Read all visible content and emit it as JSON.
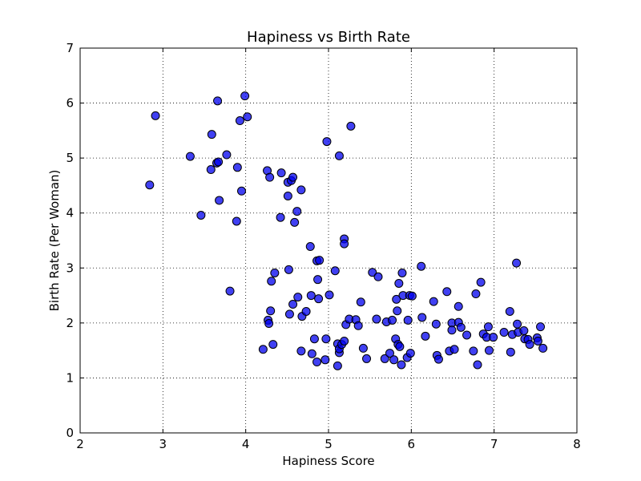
{
  "chart_data": {
    "type": "scatter",
    "title": "Hapiness vs Birth Rate",
    "xlabel": "Hapiness Score",
    "ylabel": "Birth Rate (Per Woman)",
    "xlim": [
      2,
      8
    ],
    "ylim": [
      0,
      7
    ],
    "xticks": [
      2,
      3,
      4,
      5,
      6,
      7,
      8
    ],
    "yticks": [
      0,
      1,
      2,
      3,
      4,
      5,
      6,
      7
    ],
    "grid": true,
    "marker_color": "#0000ee",
    "series": [
      {
        "points": [
          [
            2.84,
            4.51
          ],
          [
            2.91,
            5.77
          ],
          [
            3.33,
            5.03
          ],
          [
            3.46,
            3.96
          ],
          [
            3.58,
            4.79
          ],
          [
            3.59,
            5.43
          ],
          [
            3.65,
            4.91
          ],
          [
            3.66,
            6.04
          ],
          [
            3.68,
            4.23
          ],
          [
            3.67,
            4.93
          ],
          [
            3.77,
            5.06
          ],
          [
            3.81,
            2.58
          ],
          [
            3.89,
            3.85
          ],
          [
            3.9,
            4.83
          ],
          [
            3.93,
            5.68
          ],
          [
            3.95,
            4.4
          ],
          [
            3.99,
            6.13
          ],
          [
            4.02,
            5.75
          ],
          [
            4.21,
            1.52
          ],
          [
            4.26,
            4.77
          ],
          [
            4.27,
            2.05
          ],
          [
            4.28,
            1.99
          ],
          [
            4.29,
            4.65
          ],
          [
            4.3,
            2.22
          ],
          [
            4.31,
            2.76
          ],
          [
            4.33,
            1.61
          ],
          [
            4.35,
            2.91
          ],
          [
            4.42,
            3.92
          ],
          [
            4.43,
            4.73
          ],
          [
            4.51,
            4.31
          ],
          [
            4.51,
            4.56
          ],
          [
            4.52,
            2.97
          ],
          [
            4.53,
            2.16
          ],
          [
            4.55,
            4.59
          ],
          [
            4.57,
            2.34
          ],
          [
            4.57,
            4.65
          ],
          [
            4.59,
            3.83
          ],
          [
            4.62,
            4.03
          ],
          [
            4.63,
            2.47
          ],
          [
            4.67,
            4.42
          ],
          [
            4.67,
            1.49
          ],
          [
            4.68,
            2.12
          ],
          [
            4.73,
            2.21
          ],
          [
            4.78,
            3.39
          ],
          [
            4.79,
            2.5
          ],
          [
            4.8,
            1.44
          ],
          [
            4.83,
            1.71
          ],
          [
            4.86,
            3.13
          ],
          [
            4.86,
            1.29
          ],
          [
            4.87,
            2.79
          ],
          [
            4.88,
            2.44
          ],
          [
            4.89,
            3.14
          ],
          [
            4.96,
            1.33
          ],
          [
            4.97,
            1.71
          ],
          [
            4.98,
            5.3
          ],
          [
            5.01,
            2.51
          ],
          [
            5.08,
            2.95
          ],
          [
            5.11,
            1.22
          ],
          [
            5.11,
            1.62
          ],
          [
            5.13,
            1.46
          ],
          [
            5.13,
            1.53
          ],
          [
            5.13,
            5.04
          ],
          [
            5.16,
            1.61
          ],
          [
            5.19,
            3.53
          ],
          [
            5.19,
            3.44
          ],
          [
            5.19,
            1.67
          ],
          [
            5.21,
            1.97
          ],
          [
            5.25,
            2.07
          ],
          [
            5.27,
            5.58
          ],
          [
            5.33,
            2.06
          ],
          [
            5.36,
            1.95
          ],
          [
            5.39,
            2.38
          ],
          [
            5.42,
            1.54
          ],
          [
            5.46,
            1.35
          ],
          [
            5.53,
            2.92
          ],
          [
            5.58,
            2.07
          ],
          [
            5.6,
            2.84
          ],
          [
            5.68,
            1.35
          ],
          [
            5.7,
            2.02
          ],
          [
            5.74,
            1.45
          ],
          [
            5.77,
            2.05
          ],
          [
            5.79,
            1.33
          ],
          [
            5.81,
            1.71
          ],
          [
            5.82,
            2.43
          ],
          [
            5.83,
            2.22
          ],
          [
            5.84,
            1.61
          ],
          [
            5.85,
            2.72
          ],
          [
            5.86,
            1.57
          ],
          [
            5.88,
            1.24
          ],
          [
            5.89,
            2.91
          ],
          [
            5.9,
            2.5
          ],
          [
            5.95,
            1.37
          ],
          [
            5.96,
            2.05
          ],
          [
            5.98,
            2.5
          ],
          [
            5.99,
            1.45
          ],
          [
            6.01,
            2.49
          ],
          [
            6.12,
            3.03
          ],
          [
            6.13,
            2.1
          ],
          [
            6.17,
            1.76
          ],
          [
            6.27,
            2.39
          ],
          [
            6.3,
            1.98
          ],
          [
            6.31,
            1.41
          ],
          [
            6.33,
            1.34
          ],
          [
            6.43,
            2.57
          ],
          [
            6.46,
            1.49
          ],
          [
            6.49,
            2.0
          ],
          [
            6.49,
            1.87
          ],
          [
            6.52,
            1.52
          ],
          [
            6.57,
            2.3
          ],
          [
            6.57,
            2.01
          ],
          [
            6.6,
            1.92
          ],
          [
            6.67,
            1.78
          ],
          [
            6.75,
            1.49
          ],
          [
            6.78,
            2.53
          ],
          [
            6.8,
            1.24
          ],
          [
            6.84,
            2.74
          ],
          [
            6.87,
            1.8
          ],
          [
            6.91,
            1.74
          ],
          [
            6.93,
            1.93
          ],
          [
            6.94,
            1.5
          ],
          [
            6.99,
            1.74
          ],
          [
            7.12,
            1.83
          ],
          [
            7.19,
            2.21
          ],
          [
            7.2,
            1.47
          ],
          [
            7.22,
            1.79
          ],
          [
            7.27,
            3.09
          ],
          [
            7.28,
            1.98
          ],
          [
            7.29,
            1.83
          ],
          [
            7.36,
            1.86
          ],
          [
            7.37,
            1.71
          ],
          [
            7.41,
            1.7
          ],
          [
            7.43,
            1.61
          ],
          [
            7.52,
            1.73
          ],
          [
            7.53,
            1.67
          ],
          [
            7.56,
            1.93
          ],
          [
            7.59,
            1.54
          ]
        ]
      }
    ]
  }
}
